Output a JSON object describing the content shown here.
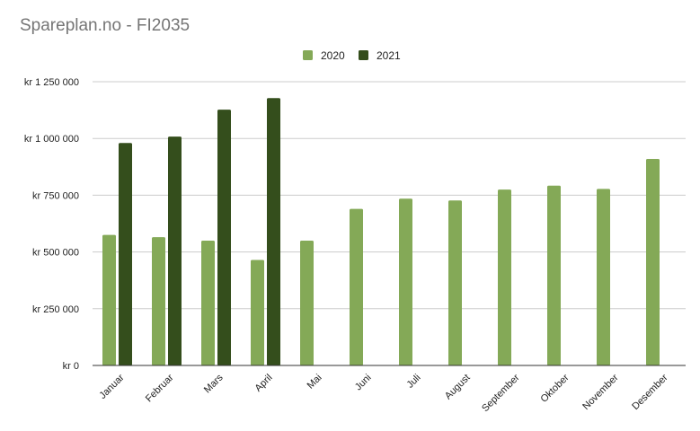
{
  "chart_data": {
    "type": "bar",
    "title": "Spareplan.no - FI2035",
    "xlabel": "",
    "ylabel": "",
    "categories": [
      "Januar",
      "Februar",
      "Mars",
      "April",
      "Mai",
      "Juni",
      "Juli",
      "August",
      "September",
      "Oktober",
      "November",
      "Desember"
    ],
    "series": [
      {
        "name": "2020",
        "color": "#84a957",
        "values": [
          575000,
          565000,
          550000,
          465000,
          550000,
          690000,
          735000,
          727000,
          775000,
          792000,
          778000,
          910000
        ]
      },
      {
        "name": "2021",
        "color": "#344e1c",
        "values": [
          980000,
          1008000,
          1127000,
          1178000,
          null,
          null,
          null,
          null,
          null,
          null,
          null,
          null
        ]
      }
    ],
    "ylim": [
      0,
      1250000
    ],
    "yticks": [
      0,
      250000,
      500000,
      750000,
      1000000,
      1250000
    ],
    "ytick_labels": [
      "kr       0",
      "kr  250 000",
      "kr  500 000",
      "kr  750 000",
      "kr 1 000 000",
      "kr 1 250 000"
    ],
    "legend_position": "top",
    "grid": true
  }
}
